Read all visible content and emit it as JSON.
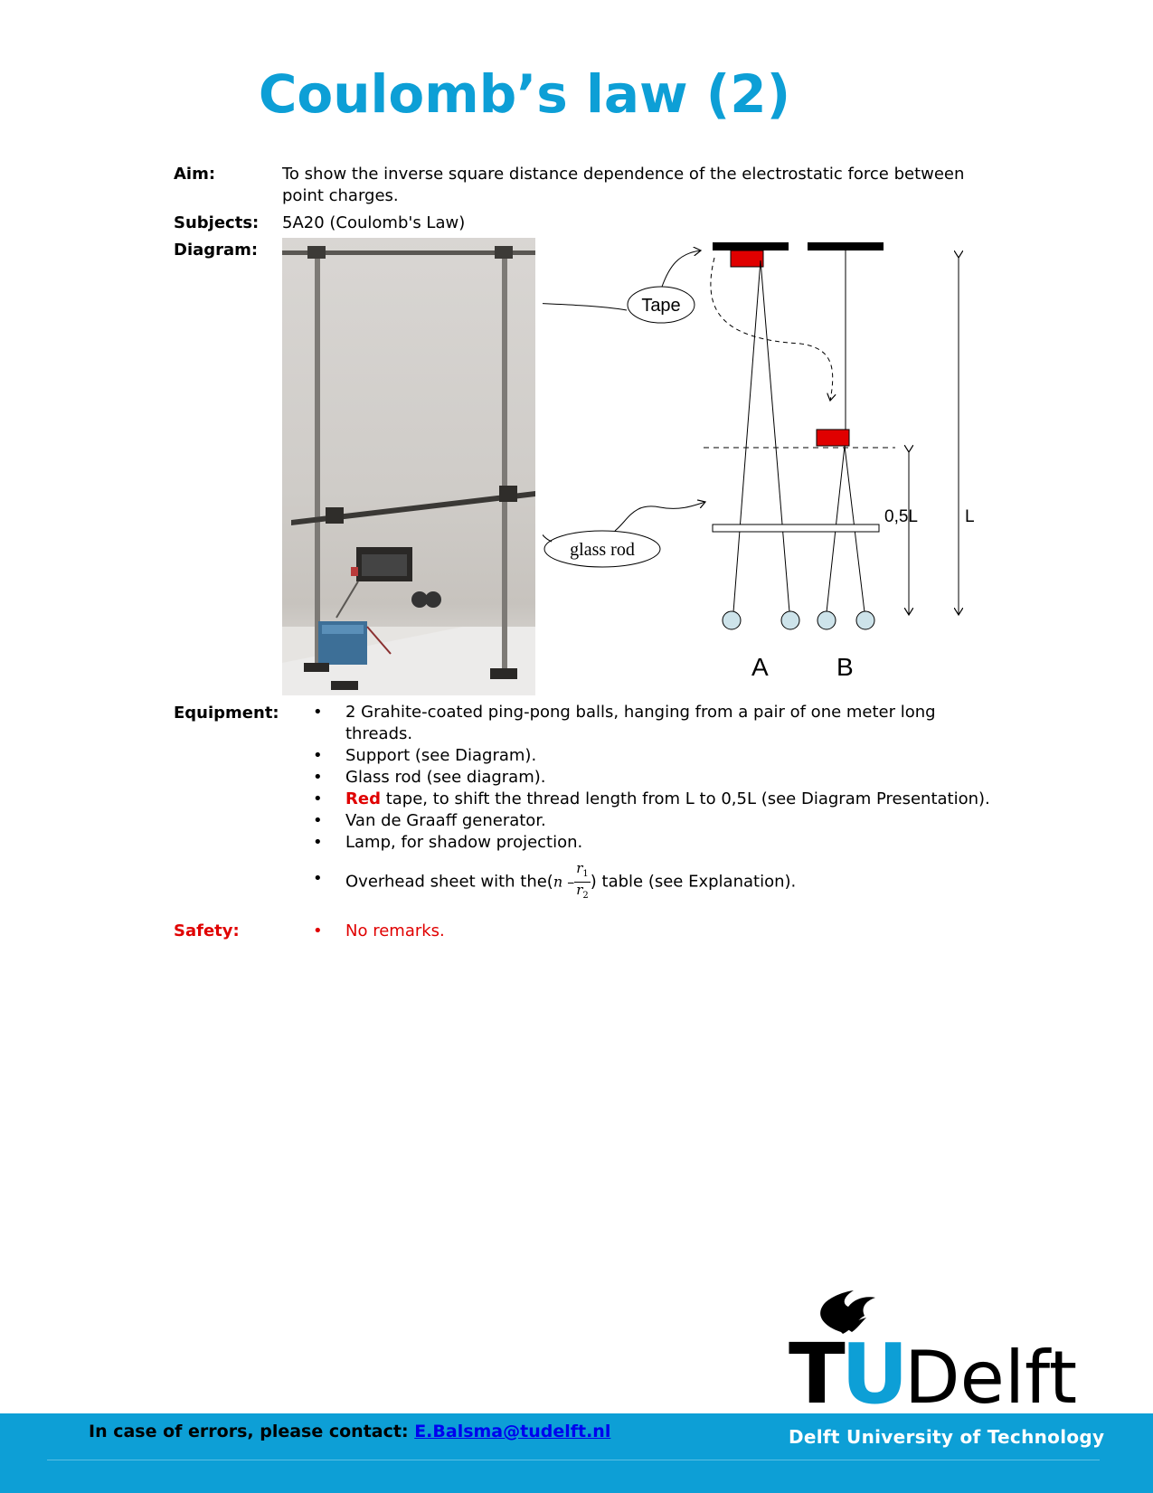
{
  "title": "Coulomb’s law (2)",
  "aim": {
    "label": "Aim:",
    "text": "To show the inverse square distance dependence of the electrostatic force between point charges."
  },
  "subjects": {
    "label": "Subjects:",
    "text": "5A20 (Coulomb's Law)"
  },
  "diagram": {
    "label": "Diagram:",
    "tape_label": "Tape",
    "glass_rod_label": "glass rod",
    "half_length_label": "0,5L",
    "length_label": "L",
    "pendulum_a_label": "A",
    "pendulum_b_label": "B"
  },
  "equipment": {
    "label": "Equipment:",
    "items": [
      "2 Grahite-coated ping-pong balls, hanging from a pair of one meter long threads.",
      "Support (see Diagram).",
      "Glass rod (see diagram).",
      "tape, to shift the thread length from L to 0,5L (see Diagram Presentation).",
      "Van de Graaff generator.",
      "Lamp, for shadow projection."
    ],
    "red_word": "Red",
    "overhead_prefix": "Overhead sheet with the(",
    "overhead_suffix": ") table (see Explanation).",
    "fraction_n": "n –",
    "fraction_num": "r",
    "fraction_num_sub": "1",
    "fraction_den": "r",
    "fraction_den_sub": "2"
  },
  "safety": {
    "label": "Safety:",
    "items": [
      "No remarks."
    ]
  },
  "footer": {
    "contact_prefix": "In case of errors, please contact:",
    "contact_email": "E.Balsma@tudelft.nl",
    "university": "Delft University of Technology",
    "logo_t": "T",
    "logo_u": "U",
    "logo_delft": "Delft"
  },
  "colors": {
    "accent": "#0d9fd6",
    "red": "#e00000",
    "ball": "#cde3ea"
  }
}
